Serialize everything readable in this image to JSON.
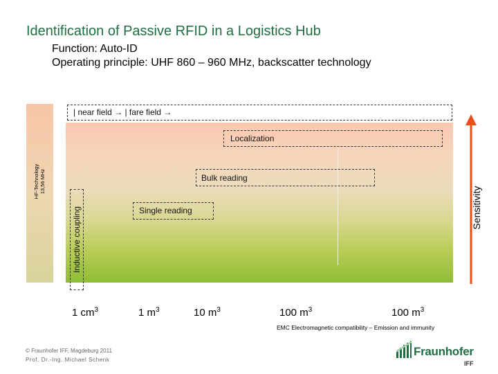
{
  "title": "Identification of Passive RFID in a Logistics Hub",
  "subtitle_function": "Function: Auto-ID",
  "subtitle_principle": "Operating principle: UHF 860 – 960 MHz, backscatter technology",
  "hf_technology": {
    "line1": "HF-Technology",
    "line2": "13,56 MHz"
  },
  "field_header": "| near field →   | fare field →",
  "regions": {
    "localization": "Localization",
    "bulk_reading": "Bulk reading",
    "single_reading": "Single reading",
    "inductive_coupling": "Inductive coupling"
  },
  "y_axis_label": "Sensitivity",
  "x_ticks": [
    {
      "base": "1 cm",
      "exp": "3"
    },
    {
      "base": "1 m",
      "exp": "3"
    },
    {
      "base": "10 m",
      "exp": "3"
    },
    {
      "base": "100 m",
      "exp": "3"
    },
    {
      "base": "100 m",
      "exp": "3"
    }
  ],
  "emc_note": "EMC Electromagnetic compatibility – Emission and immunity",
  "footer": {
    "copyright": "© Fraunhofer IFF, Magdeburg 2011",
    "author": "Prof. Dr.-Ing. Michael Schenk"
  },
  "logo": {
    "name": "Fraunhofer",
    "unit": "IFF",
    "color": "#1f6e43"
  },
  "colors": {
    "title": "#1f6e43",
    "arrow": "#e94e1b",
    "gradient_top": "#fbc8b0",
    "gradient_bottom": "#8fbd34"
  }
}
